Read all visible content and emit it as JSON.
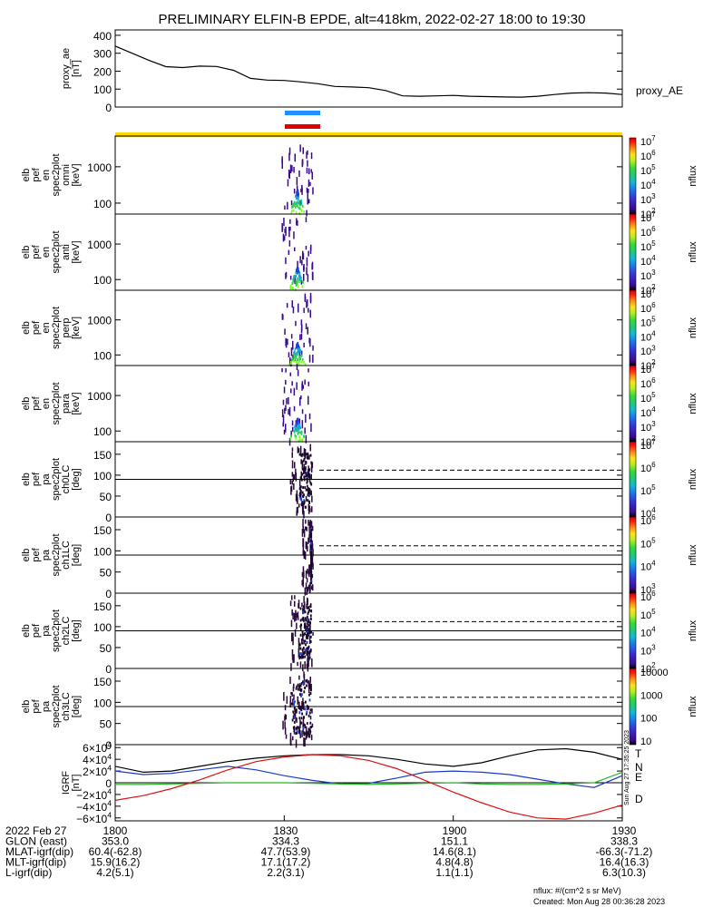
{
  "title": "PRELIMINARY ELFIN-B EPDE, alt=418km, 2022-02-27 18:00 to 19:30",
  "colors": {
    "science_zone_bar": "#ffd700",
    "segment_blue": "#1e90ff",
    "segment_red": "#e00000",
    "grf_T": "#000000",
    "grf_N": "#1a3acc",
    "grf_E": "#22bb22",
    "grf_D": "#dd1111"
  },
  "side_stamp": "Sun Aug 27 17:35:25 2023",
  "footer": {
    "rows": [
      {
        "label": "2022 Feb 27",
        "values": [
          "1800",
          "1830",
          "1900",
          "1930"
        ]
      },
      {
        "label": "GLON (east)",
        "values": [
          "353.0",
          "334.3",
          "151.1",
          "338.3"
        ]
      },
      {
        "label": "MLAT-igrf(dip)",
        "values": [
          "60.4(-62.8)",
          "47.7(53.9)",
          "14.6(8.1)",
          "-66.3(-71.2)"
        ]
      },
      {
        "label": "MLT-igrf(dip)",
        "values": [
          "15.9(16.2)",
          "17.1(17.2)",
          "4.8(4.8)",
          "16.4(16.3)"
        ]
      },
      {
        "label": "L-igrf(dip)",
        "values": [
          "4.2(5.1)",
          "2.2(3.1)",
          "1.1(1.1)",
          "6.3(10.3)"
        ]
      }
    ],
    "units_note": "nflux: #/(cm^2 s sr MeV)",
    "created": "Created: Mon Aug 28 00:36:28 2023"
  },
  "chart_data": [
    {
      "type": "line",
      "panel": "proxy_ae",
      "ylabel": [
        "proxy_ae",
        "[nT]"
      ],
      "legend": "proxy_AE",
      "ylim": [
        0,
        430
      ],
      "yticks": [
        "400",
        "300",
        "200",
        "100",
        "0"
      ],
      "ytick_values": [
        400,
        300,
        200,
        100,
        0
      ],
      "x_minutes": [
        0,
        3,
        6,
        9,
        12,
        15,
        18,
        21,
        24,
        27,
        30,
        33,
        36,
        39,
        42,
        45,
        48,
        51,
        54,
        57,
        60,
        63,
        66,
        69,
        72,
        75,
        78,
        81,
        84,
        87,
        90
      ],
      "values": [
        340,
        300,
        260,
        225,
        220,
        228,
        226,
        205,
        160,
        150,
        148,
        140,
        130,
        115,
        112,
        108,
        92,
        62,
        60,
        62,
        65,
        60,
        58,
        56,
        55,
        60,
        70,
        78,
        80,
        78,
        70
      ]
    },
    {
      "type": "heatmap",
      "panel": "energy-spectrogram-omni",
      "ylabel": [
        "elb",
        "pef",
        "en",
        "spec2plot",
        "omni",
        "[keV]"
      ],
      "yscale": "log",
      "ylim": [
        50,
        7000
      ],
      "yticks": [
        "1000",
        "100"
      ],
      "colorbar": {
        "label": "nflux",
        "ticks": [
          "10^7",
          "10^6",
          "10^5",
          "10^4",
          "10^3",
          "10^2"
        ]
      },
      "activity_minutes": [
        29.5,
        35.0
      ]
    },
    {
      "type": "heatmap",
      "panel": "energy-spectrogram-anti",
      "ylabel": [
        "elb",
        "pef",
        "en",
        "spec2plot",
        "anti",
        "[keV]"
      ],
      "yscale": "log",
      "ylim": [
        50,
        7000
      ],
      "yticks": [
        "1000",
        "100"
      ],
      "colorbar": {
        "label": "nflux",
        "ticks": [
          "10^7",
          "10^6",
          "10^5",
          "10^4",
          "10^3",
          "10^2"
        ]
      },
      "activity_minutes": [
        29.5,
        35.0
      ]
    },
    {
      "type": "heatmap",
      "panel": "energy-spectrogram-perp",
      "ylabel": [
        "elb",
        "pef",
        "en",
        "spec2plot",
        "perp",
        "[keV]"
      ],
      "yscale": "log",
      "ylim": [
        50,
        7000
      ],
      "yticks": [
        "1000",
        "100"
      ],
      "colorbar": {
        "label": "nflux",
        "ticks": [
          "10^7",
          "10^6",
          "10^5",
          "10^4",
          "10^3",
          "10^2"
        ]
      },
      "activity_minutes": [
        29.5,
        35.0
      ]
    },
    {
      "type": "heatmap",
      "panel": "energy-spectrogram-para",
      "ylabel": [
        "elb",
        "pef",
        "en",
        "spec2plot",
        "para",
        "[keV]"
      ],
      "yscale": "log",
      "ylim": [
        50,
        7000
      ],
      "yticks": [
        "1000",
        "100"
      ],
      "colorbar": {
        "label": "nflux",
        "ticks": [
          "10^7",
          "10^6",
          "10^5",
          "10^4",
          "10^3",
          "10^2"
        ]
      },
      "activity_minutes": [
        29.5,
        35.0
      ]
    },
    {
      "type": "heatmap",
      "panel": "pitch-angle-ch0LC",
      "ylabel": [
        "elb",
        "pef",
        "pa",
        "spec2plot",
        "ch0LC",
        "[deg]"
      ],
      "ylim": [
        0,
        180
      ],
      "yticks": [
        "150",
        "100",
        "50",
        "0"
      ],
      "ytick_values": [
        150,
        100,
        50,
        0
      ],
      "ref_line_deg": 90,
      "loss_cone_deg": 68,
      "antiloss_cone_deg": 112,
      "colorbar": {
        "label": "nflux",
        "ticks": [
          "10^7",
          "10^6",
          "10^5",
          "10^4"
        ]
      },
      "activity_minutes": [
        31.0,
        35.0
      ]
    },
    {
      "type": "heatmap",
      "panel": "pitch-angle-ch1LC",
      "ylabel": [
        "elb",
        "pef",
        "pa",
        "spec2plot",
        "ch1LC",
        "[deg]"
      ],
      "ylim": [
        0,
        180
      ],
      "yticks": [
        "150",
        "100",
        "50",
        "0"
      ],
      "ytick_values": [
        150,
        100,
        50,
        0
      ],
      "ref_line_deg": 90,
      "loss_cone_deg": 68,
      "antiloss_cone_deg": 112,
      "colorbar": {
        "label": "nflux",
        "ticks": [
          "10^6",
          "10^5",
          "10^4",
          "10^3"
        ]
      },
      "activity_minutes": [
        33.0,
        35.0
      ]
    },
    {
      "type": "heatmap",
      "panel": "pitch-angle-ch2LC",
      "ylabel": [
        "elb",
        "pef",
        "pa",
        "spec2plot",
        "ch2LC",
        "[deg]"
      ],
      "ylim": [
        0,
        180
      ],
      "yticks": [
        "150",
        "100",
        "50",
        "0"
      ],
      "ytick_values": [
        150,
        100,
        50,
        0
      ],
      "ref_line_deg": 90,
      "loss_cone_deg": 68,
      "antiloss_cone_deg": 112,
      "colorbar": {
        "label": "nflux",
        "ticks": [
          "10^6",
          "10^5",
          "10^4",
          "10^3",
          "10^2"
        ]
      },
      "activity_minutes": [
        31.0,
        35.0
      ]
    },
    {
      "type": "heatmap",
      "panel": "pitch-angle-ch3LC",
      "ylabel": [
        "elb",
        "pef",
        "pa",
        "spec2plot",
        "ch3LC",
        "[deg]"
      ],
      "ylim": [
        0,
        180
      ],
      "yticks": [
        "150",
        "100",
        "50",
        "0"
      ],
      "ytick_values": [
        150,
        100,
        50,
        0
      ],
      "ref_line_deg": 90,
      "loss_cone_deg": 68,
      "antiloss_cone_deg": 112,
      "colorbar": {
        "label": "nflux",
        "ticks": [
          "10000",
          "1000",
          "100",
          "10"
        ]
      },
      "activity_minutes": [
        29.5,
        35.0
      ]
    },
    {
      "type": "line",
      "panel": "igrf-field",
      "ylabel": [
        "IGRF",
        "[nT]"
      ],
      "ylim": [
        -65000,
        65000
      ],
      "yticks": [
        "6×10^4",
        "4×10^4",
        "2×10^4",
        "0",
        "−2×10^4",
        "−4×10^4",
        "−6×10^4"
      ],
      "ytick_values": [
        60000,
        40000,
        20000,
        0,
        -20000,
        -40000,
        -60000
      ],
      "x_minutes": [
        0,
        5,
        10,
        15,
        20,
        25,
        30,
        35,
        40,
        45,
        50,
        55,
        60,
        65,
        70,
        75,
        80,
        85,
        90
      ],
      "series": [
        {
          "name": "T",
          "values": [
            28000,
            18000,
            20000,
            28000,
            36000,
            42000,
            46000,
            48000,
            48000,
            46000,
            40000,
            32000,
            28000,
            34000,
            46000,
            56000,
            58000,
            52000,
            40000
          ]
        },
        {
          "name": "N",
          "values": [
            20000,
            14000,
            16000,
            22000,
            28000,
            22000,
            12000,
            4000,
            -2000,
            -1000,
            8000,
            18000,
            20000,
            18000,
            14000,
            6000,
            -2000,
            -8000,
            12000
          ]
        },
        {
          "name": "E",
          "values": [
            -3000,
            -3000,
            -2000,
            -1000,
            0,
            0,
            0,
            -1000,
            -2000,
            -3000,
            -2000,
            -1000,
            0,
            -2000,
            -3000,
            -3000,
            -2000,
            0,
            18000
          ]
        },
        {
          "name": "D",
          "values": [
            -30000,
            -22000,
            -10000,
            5000,
            22000,
            36000,
            44000,
            48000,
            46000,
            38000,
            24000,
            4000,
            -16000,
            -34000,
            -50000,
            -60000,
            -62000,
            -52000,
            -38000
          ]
        }
      ]
    }
  ]
}
